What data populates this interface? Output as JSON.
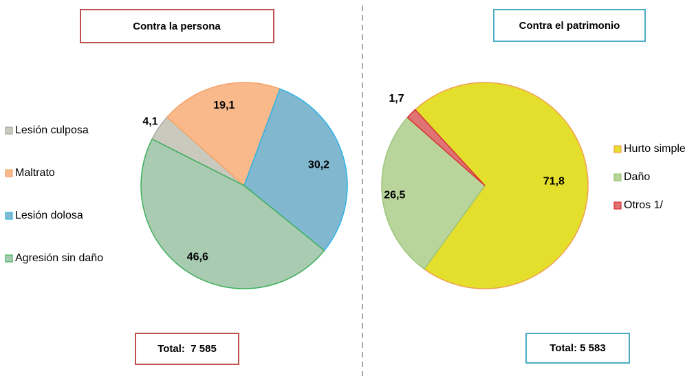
{
  "chart_data": [
    {
      "type": "pie",
      "title": "Contra la persona",
      "total": "Total:  7 585",
      "categories": [
        "Lesión culposa",
        "Maltrato",
        "Lesión dolosa",
        "Agresión sin daño"
      ],
      "values": [
        4.1,
        19.1,
        30.2,
        46.6
      ],
      "value_labels": [
        "4,1",
        "19,1",
        "30,2",
        "46,6"
      ],
      "colors": [
        "#c9c9bd",
        "#f9b98b",
        "#82b8cf",
        "#a9cbb1"
      ],
      "edge_colors": [
        "#a8a89c",
        "#f4a46a",
        "#2db2e8",
        "#3cb05a"
      ]
    },
    {
      "type": "pie",
      "title": "Contra el patrimonio",
      "total": "Total: 5 583",
      "categories": [
        "Hurto simple",
        "Daño",
        "Otros 1/"
      ],
      "values": [
        71.8,
        26.5,
        1.7
      ],
      "value_labels": [
        "71,8",
        "26,5",
        "1,7"
      ],
      "colors": [
        "#e3df2c",
        "#b9d59c",
        "#e07474"
      ],
      "edge_colors": [
        "#f0a050",
        "#9bc47a",
        "#d83030"
      ]
    }
  ]
}
